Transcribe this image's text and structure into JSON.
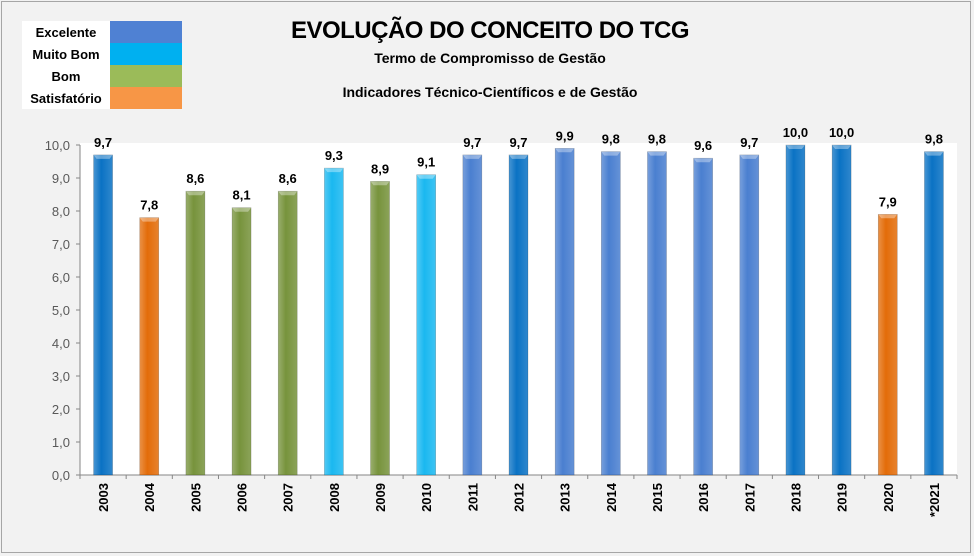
{
  "chart_data": {
    "type": "bar",
    "title": "EVOLUÇÃO DO CONCEITO DO TCG",
    "subtitle": "Termo de Compromisso de Gestão",
    "subtitle2": "Indicadores Técnico-Científicos e de Gestão",
    "categories": [
      "2003",
      "2004",
      "2005",
      "2006",
      "2007",
      "2008",
      "2009",
      "2010",
      "2011",
      "2012",
      "2013",
      "2014",
      "2015",
      "2016",
      "2017",
      "2018",
      "2019",
      "2020",
      "*2021"
    ],
    "values": [
      9.7,
      7.8,
      8.6,
      8.1,
      8.6,
      9.3,
      8.9,
      9.1,
      9.7,
      9.7,
      9.9,
      9.8,
      9.8,
      9.6,
      9.7,
      10.0,
      10.0,
      7.9,
      9.8
    ],
    "data_labels": [
      "9,7",
      "7,8",
      "8,6",
      "8,1",
      "8,6",
      "9,3",
      "8,9",
      "9,1",
      "9,7",
      "9,7",
      "9,9",
      "9,8",
      "9,8",
      "9,6",
      "9,7",
      "10,0",
      "10,0",
      "7,9",
      "9,8"
    ],
    "bar_colors": [
      "#0a72c4",
      "#e36c09",
      "#77933c",
      "#77933c",
      "#77933c",
      "#1ab8f0",
      "#77933c",
      "#1ab8f0",
      "#4a7fd0",
      "#0a72c4",
      "#4a7fd0",
      "#4a7fd0",
      "#4a7fd0",
      "#4a7fd0",
      "#4a7fd0",
      "#0a72c4",
      "#0a72c4",
      "#e36c09",
      "#0a72c4"
    ],
    "ylim": [
      0,
      10
    ],
    "yticks": [
      "0,0",
      "1,0",
      "2,0",
      "3,0",
      "4,0",
      "5,0",
      "6,0",
      "7,0",
      "8,0",
      "9,0",
      "10,0"
    ],
    "xlabel": "",
    "ylabel": "",
    "grid": false,
    "legend": {
      "placement": "top-left",
      "items": [
        {
          "label": "Excelente",
          "color": "#4f81d3"
        },
        {
          "label": "Muito Bom",
          "color": "#00b0f0"
        },
        {
          "label": "Bom",
          "color": "#9bbb59"
        },
        {
          "label": "Satisfatório",
          "color": "#f79646"
        }
      ]
    }
  }
}
